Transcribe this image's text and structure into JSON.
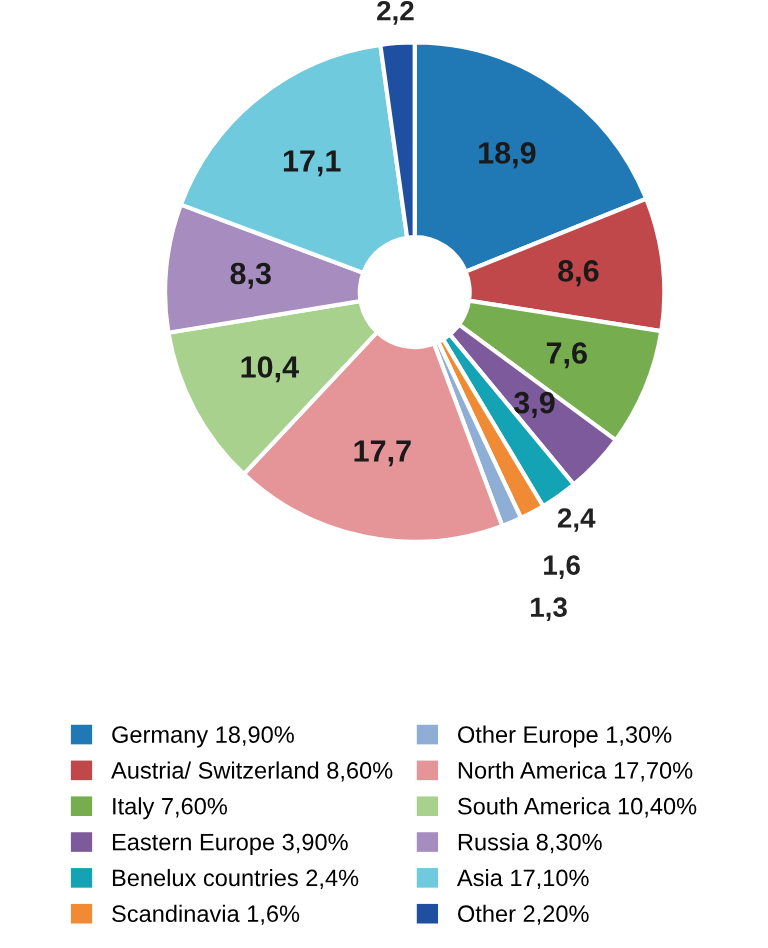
{
  "chart_data": {
    "type": "donut",
    "categories": [
      "Germany 18,90%",
      "Austria/ Switzerland 8,60%",
      "Italy 7,60%",
      "Eastern Europe 3,90%",
      "Benelux countries 2,4%",
      "Scandinavia 1,6%",
      "Other Europe 1,30%",
      "North America 17,70%",
      "South America 10,40%",
      "Russia 8,30%",
      "Asia 17,10%",
      "Other 2,20%"
    ],
    "values": [
      18.9,
      8.6,
      7.6,
      3.9,
      2.4,
      1.6,
      1.3,
      17.7,
      10.4,
      8.3,
      17.1,
      2.2
    ],
    "value_labels": [
      "18,9",
      "8,6",
      "7,6",
      "3,9",
      "2,4",
      "1,6",
      "1,3",
      "17,7",
      "10,4",
      "8,3",
      "17,1",
      "2,2"
    ],
    "colors": [
      "#2079b4",
      "#c0474a",
      "#76ad4f",
      "#7d5a9b",
      "#13a3b5",
      "#f08a35",
      "#8eaed6",
      "#e59597",
      "#a9d18e",
      "#a68cbf",
      "#6ecadc",
      "#1f4fa0"
    ],
    "legend": "bottom"
  }
}
